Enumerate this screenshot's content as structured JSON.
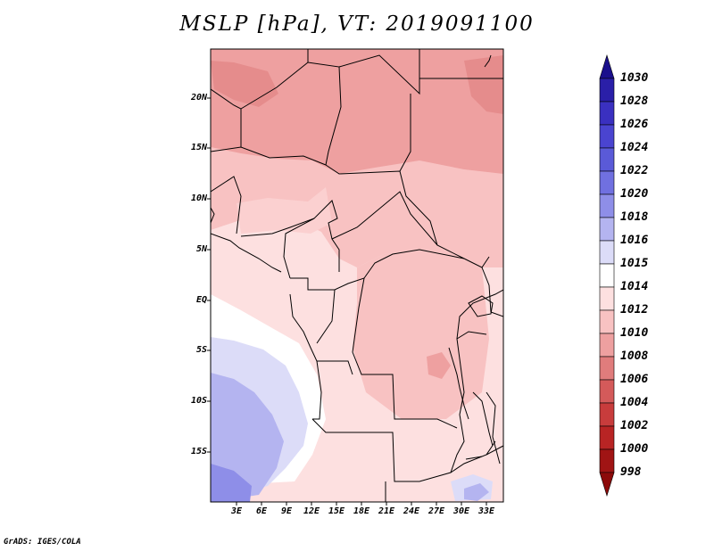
{
  "title": "MSLP [hPa], VT: 2019091100",
  "footer": "GrADS: IGES/COLA",
  "map": {
    "variable": "MSLP",
    "units": "hPa",
    "valid_time": "2019091100",
    "lat_labels": [
      "20N",
      "15N",
      "10N",
      "5N",
      "EQ",
      "5S",
      "10S",
      "15S"
    ],
    "lon_labels": [
      "3E",
      "6E",
      "9E",
      "12E",
      "15E",
      "18E",
      "21E",
      "24E",
      "27E",
      "30E",
      "33E"
    ]
  },
  "colorbar": {
    "labels": [
      "1030",
      "1028",
      "1026",
      "1024",
      "1022",
      "1020",
      "1018",
      "1016",
      "1015",
      "1014",
      "1012",
      "1010",
      "1008",
      "1006",
      "1004",
      "1002",
      "1000",
      "998"
    ],
    "colors": [
      "#1a0f8c",
      "#2a1fa8",
      "#3a30c0",
      "#4a44d0",
      "#5a5ad8",
      "#7070e0",
      "#8e8ee8",
      "#b4b4f0",
      "#dcdcf8",
      "#ffffff",
      "#fde0e0",
      "#f8c2c2",
      "#eea0a0",
      "#e07c7c",
      "#d45a5a",
      "#c83c3c",
      "#b82424",
      "#a01414",
      "#8c0a0a"
    ]
  }
}
